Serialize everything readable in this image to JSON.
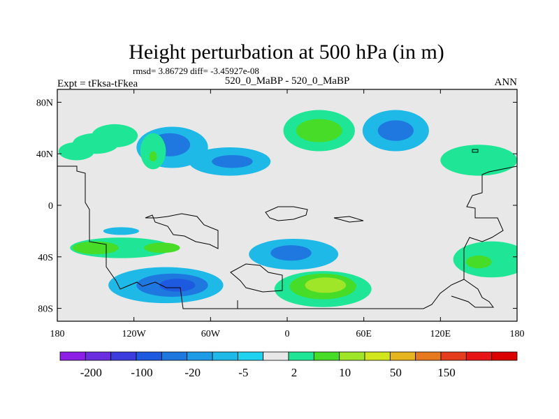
{
  "chart_data": {
    "type": "heatmap",
    "title": "Height perturbation at 500 hPa (in m)",
    "stats_line": "rmsd= 3.86729 diff= -3.45927e-08",
    "left_label": "Expt = tFksa-tFkea",
    "center_label": "520_0_MaBP - 520_0_MaBP",
    "right_label": "ANN",
    "x_ticks": [
      {
        "lon": -180,
        "label": "180"
      },
      {
        "lon": -120,
        "label": "120W"
      },
      {
        "lon": -60,
        "label": "60W"
      },
      {
        "lon": 0,
        "label": "0"
      },
      {
        "lon": 60,
        "label": "60E"
      },
      {
        "lon": 120,
        "label": "120E"
      },
      {
        "lon": 180,
        "label": "180"
      }
    ],
    "y_ticks": [
      {
        "lat": 80,
        "label": "80N"
      },
      {
        "lat": 40,
        "label": "40N"
      },
      {
        "lat": 0,
        "label": "0"
      },
      {
        "lat": -40,
        "label": "40S"
      },
      {
        "lat": -80,
        "label": "80S"
      }
    ],
    "xlim": [
      -180,
      180
    ],
    "ylim": [
      -90,
      90
    ],
    "colorbar": {
      "colors": [
        "#8c1ee6",
        "#6a2ee0",
        "#3c3cdf",
        "#1e5adf",
        "#1e78df",
        "#1e9be6",
        "#1eb9e6",
        "#1ed2f0",
        "#e8e8e8",
        "#1ee696",
        "#46dc28",
        "#a0e628",
        "#d2e61e",
        "#e6b41e",
        "#e6781e",
        "#e63c1e",
        "#e61414",
        "#dc0000"
      ],
      "labels": [
        "-200",
        "-100",
        "-20",
        "-5",
        "2",
        "10",
        "50",
        "150"
      ]
    },
    "regions": [
      {
        "name": "nh-pacific-east-neg",
        "level": -10,
        "lon": -90,
        "lat": 45,
        "rlon": 28,
        "rlat": 16
      },
      {
        "name": "nh-pacific-east-core",
        "level": -20,
        "lon": -92,
        "lat": 47,
        "rlon": 16,
        "rlat": 9
      },
      {
        "name": "nh-atlantic-neg",
        "level": -10,
        "lon": -45,
        "lat": 34,
        "rlon": 32,
        "rlat": 11
      },
      {
        "name": "nh-atlantic-core",
        "level": -20,
        "lon": -43,
        "lat": 34,
        "rlon": 16,
        "rlat": 5
      },
      {
        "name": "nh-asia-neg",
        "level": -10,
        "lon": 85,
        "lat": 58,
        "rlon": 26,
        "rlat": 16
      },
      {
        "name": "nh-asia-core",
        "level": -20,
        "lon": 85,
        "lat": 58,
        "rlon": 14,
        "rlat": 8
      },
      {
        "name": "nh-europe-pos",
        "level": 5,
        "lon": 25,
        "lat": 58,
        "rlon": 28,
        "rlat": 16
      },
      {
        "name": "nh-europe-core",
        "level": 10,
        "lon": 25,
        "lat": 58,
        "rlon": 18,
        "rlat": 9
      },
      {
        "name": "nh-pacific-west-pos",
        "level": 5,
        "lon": -135,
        "lat": 54,
        "rlon": 18,
        "rlat": 9
      },
      {
        "name": "nh-pacific-west2-pos",
        "level": 5,
        "lon": -150,
        "lat": 48,
        "rlon": 18,
        "rlat": 8
      },
      {
        "name": "nh-siberia-pos",
        "level": 5,
        "lon": -165,
        "lat": 42,
        "rlon": 14,
        "rlat": 7
      },
      {
        "name": "nh-kamchatka-pos",
        "level": 5,
        "lon": -105,
        "lat": 42,
        "rlon": 10,
        "rlat": 14
      },
      {
        "name": "nh-kamchatka-core",
        "level": 10,
        "lon": -105,
        "lat": 38,
        "rlon": 3,
        "rlat": 4
      },
      {
        "name": "nh-east-pos",
        "level": 5,
        "lon": 150,
        "lat": 35,
        "rlon": 30,
        "rlat": 12
      },
      {
        "name": "sh-pacific-neg",
        "level": -10,
        "lon": -95,
        "lat": -62,
        "rlon": 45,
        "rlat": 14
      },
      {
        "name": "sh-pacific-core",
        "level": -20,
        "lon": -90,
        "lat": -62,
        "rlon": 28,
        "rlat": 9
      },
      {
        "name": "sh-pacific-inner",
        "level": -50,
        "lon": -86,
        "lat": -62,
        "rlon": 14,
        "rlat": 5
      },
      {
        "name": "sh-indian-neg",
        "level": -10,
        "lon": 5,
        "lat": -38,
        "rlon": 35,
        "rlat": 12
      },
      {
        "name": "sh-indian-core",
        "level": -20,
        "lon": 3,
        "lat": -37,
        "rlon": 16,
        "rlat": 6
      },
      {
        "name": "sh-atlantic-pos",
        "level": 5,
        "lon": 28,
        "lat": -65,
        "rlon": 38,
        "rlat": 14
      },
      {
        "name": "sh-atlantic-core",
        "level": 10,
        "lon": 28,
        "lat": -63,
        "rlon": 26,
        "rlat": 10
      },
      {
        "name": "sh-atlantic-inner",
        "level": 20,
        "lon": 30,
        "lat": -62,
        "rlon": 16,
        "rlat": 6
      },
      {
        "name": "sh-pacific-west-pos",
        "level": 5,
        "lon": -130,
        "lat": -33,
        "rlon": 40,
        "rlat": 8
      },
      {
        "name": "sh-pacific-west-core",
        "level": 10,
        "lon": -150,
        "lat": -33,
        "rlon": 18,
        "rlat": 5
      },
      {
        "name": "sh-pacific-mid-core",
        "level": 10,
        "lon": -98,
        "lat": -33,
        "rlon": 14,
        "rlat": 4
      },
      {
        "name": "sh-south-america-pos",
        "level": 5,
        "lon": 160,
        "lat": -42,
        "rlon": 30,
        "rlat": 14
      },
      {
        "name": "sh-south-america-core",
        "level": 10,
        "lon": 150,
        "lat": -44,
        "rlon": 10,
        "rlat": 5
      },
      {
        "name": "sh-tropic-neg",
        "level": -10,
        "lon": -130,
        "lat": -20,
        "rlon": 14,
        "rlat": 3
      }
    ]
  }
}
